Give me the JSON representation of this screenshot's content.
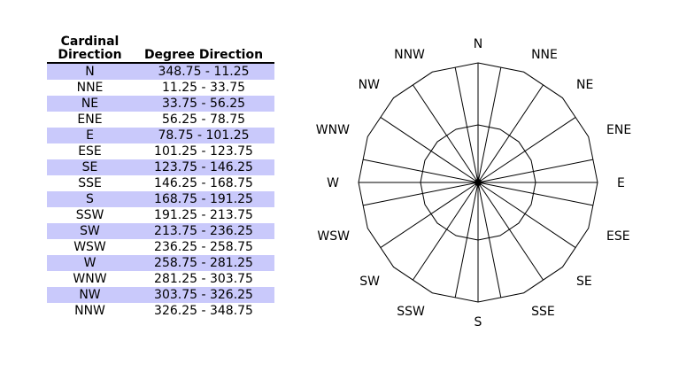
{
  "table": {
    "header_cardinal": [
      "Cardinal",
      "Direction"
    ],
    "header_degree": "Degree Direction",
    "rows": [
      {
        "dir": "N",
        "range": "348.75 - 11.25"
      },
      {
        "dir": "NNE",
        "range": "11.25 - 33.75"
      },
      {
        "dir": "NE",
        "range": "33.75 - 56.25"
      },
      {
        "dir": "ENE",
        "range": "56.25 - 78.75"
      },
      {
        "dir": "E",
        "range": "78.75 - 101.25"
      },
      {
        "dir": "ESE",
        "range": "101.25 - 123.75"
      },
      {
        "dir": "SE",
        "range": "123.75 - 146.25"
      },
      {
        "dir": "SSE",
        "range": "146.25 - 168.75"
      },
      {
        "dir": "S",
        "range": "168.75 - 191.25"
      },
      {
        "dir": "SSW",
        "range": "191.25 - 213.75"
      },
      {
        "dir": "SW",
        "range": "213.75 - 236.25"
      },
      {
        "dir": "WSW",
        "range": "236.25 - 258.75"
      },
      {
        "dir": "W",
        "range": "258.75 - 281.25"
      },
      {
        "dir": "WNW",
        "range": "281.25 - 303.75"
      },
      {
        "dir": "NW",
        "range": "303.75 - 326.25"
      },
      {
        "dir": "NNW",
        "range": "326.25 - 348.75"
      }
    ]
  },
  "rose": {
    "labels": [
      "N",
      "NNE",
      "NE",
      "ENE",
      "E",
      "ESE",
      "SE",
      "SSE",
      "S",
      "SSW",
      "SW",
      "WSW",
      "W",
      "WNW",
      "NW",
      "NNW"
    ],
    "row_shade_color": "#c9c9fb"
  }
}
